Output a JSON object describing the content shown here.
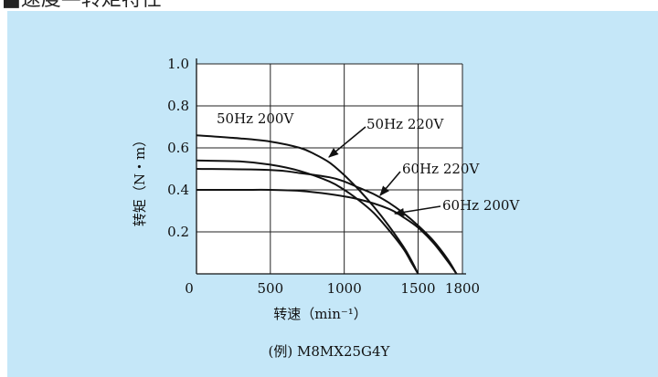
{
  "header": {
    "title": "■速度—转矩特性"
  },
  "chart_data": {
    "type": "line",
    "title": "",
    "xlabel": "转速（min⁻¹）",
    "ylabel": "转矩（N・m）",
    "xlim": [
      0,
      1800
    ],
    "ylim": [
      0,
      1.0
    ],
    "xticks": [
      0,
      500,
      1000,
      1500,
      1800
    ],
    "xtick_labels": [
      "0",
      "500",
      "1000",
      "1500",
      "1800"
    ],
    "yticks": [
      0.2,
      0.4,
      0.6,
      0.8,
      1.0
    ],
    "ytick_labels": [
      "0.2",
      "0.4",
      "0.6",
      "0.8",
      "1.0"
    ],
    "grid": true,
    "series": [
      {
        "name": "50Hz 200V",
        "x": [
          0,
          300,
          500,
          700,
          900,
          1000,
          1100,
          1200,
          1300,
          1400,
          1450,
          1500
        ],
        "y": [
          0.54,
          0.535,
          0.52,
          0.49,
          0.44,
          0.4,
          0.35,
          0.29,
          0.21,
          0.12,
          0.06,
          0.0
        ]
      },
      {
        "name": "50Hz 220V",
        "x": [
          0,
          300,
          500,
          700,
          800,
          900,
          1000,
          1100,
          1200,
          1300,
          1400,
          1450,
          1500
        ],
        "y": [
          0.66,
          0.645,
          0.63,
          0.6,
          0.57,
          0.53,
          0.47,
          0.4,
          0.32,
          0.23,
          0.13,
          0.07,
          0.0
        ]
      },
      {
        "name": "60Hz 220V",
        "x": [
          0,
          500,
          700,
          900,
          1000,
          1100,
          1200,
          1300,
          1400,
          1500,
          1600,
          1700,
          1760
        ],
        "y": [
          0.5,
          0.495,
          0.48,
          0.46,
          0.44,
          0.41,
          0.38,
          0.34,
          0.29,
          0.23,
          0.16,
          0.07,
          0.0
        ]
      },
      {
        "name": "60Hz 200V",
        "x": [
          0,
          300,
          500,
          700,
          900,
          1100,
          1300,
          1400,
          1500,
          1600,
          1700,
          1760
        ],
        "y": [
          0.4,
          0.4,
          0.4,
          0.395,
          0.38,
          0.355,
          0.31,
          0.27,
          0.22,
          0.15,
          0.06,
          0.0
        ]
      }
    ],
    "annotations": [
      "50Hz 200V",
      "50Hz 220V",
      "60Hz 220V",
      "60Hz 200V"
    ]
  },
  "caption": "(例) M8MX25G4Y",
  "colors": {
    "panel_bg": "#c5e7f8",
    "line": "#111111",
    "plot_bg": "#ffffff"
  }
}
